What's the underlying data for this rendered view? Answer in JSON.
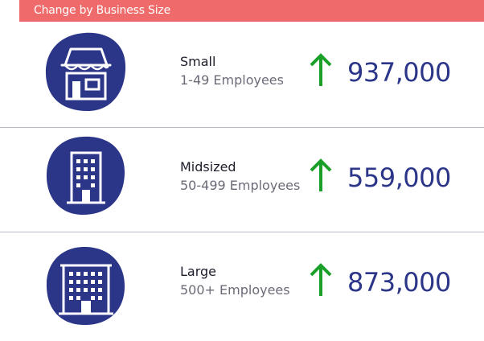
{
  "header": {
    "title": "Change by Business Size"
  },
  "colors": {
    "header_bg": "#ef6a6a",
    "icon_blob": "#2c3689",
    "arrow_up": "#1aa028",
    "value_text": "#2c3689",
    "divider": "#b9b9c9"
  },
  "rows": [
    {
      "icon": "small-business-store-icon",
      "name": "Small",
      "employees": "1-49 Employees",
      "trend_icon": "arrow-up-icon",
      "change": "937,000"
    },
    {
      "icon": "office-building-icon",
      "name": "Midsized",
      "employees": "50-499 Employees",
      "trend_icon": "arrow-up-icon",
      "change": "559,000"
    },
    {
      "icon": "large-office-building-icon",
      "name": "Large",
      "employees": "500+ Employees",
      "trend_icon": "arrow-up-icon",
      "change": "873,000"
    }
  ]
}
